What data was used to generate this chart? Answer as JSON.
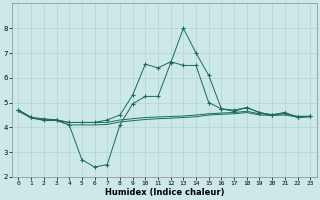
{
  "xlabel": "Humidex (Indice chaleur)",
  "xlim": [
    -0.5,
    23.5
  ],
  "ylim": [
    2,
    9
  ],
  "yticks": [
    2,
    3,
    4,
    5,
    6,
    7,
    8
  ],
  "xticks": [
    0,
    1,
    2,
    3,
    4,
    5,
    6,
    7,
    8,
    9,
    10,
    11,
    12,
    13,
    14,
    15,
    16,
    17,
    18,
    19,
    20,
    21,
    22,
    23
  ],
  "bg_color": "#cce8e8",
  "grid_color": "#b8d8d0",
  "line_color": "#1a6b5a",
  "lines": [
    {
      "x": [
        0,
        1,
        2,
        3,
        4,
        5,
        6,
        7,
        8,
        9,
        10,
        11,
        12,
        13,
        14,
        15,
        16,
        17,
        18,
        19,
        20,
        21,
        22,
        23
      ],
      "y": [
        4.7,
        4.4,
        4.3,
        4.3,
        4.2,
        4.2,
        4.2,
        4.2,
        4.3,
        4.35,
        4.4,
        4.42,
        4.44,
        4.46,
        4.5,
        4.55,
        4.58,
        4.6,
        4.65,
        4.55,
        4.52,
        4.55,
        4.45,
        4.45
      ],
      "marker": null
    },
    {
      "x": [
        0,
        1,
        2,
        3,
        4,
        5,
        6,
        7,
        8,
        9,
        10,
        11,
        12,
        13,
        14,
        15,
        16,
        17,
        18,
        19,
        20,
        21,
        22,
        23
      ],
      "y": [
        4.7,
        4.4,
        4.3,
        4.3,
        4.1,
        2.7,
        2.4,
        2.5,
        4.1,
        4.95,
        5.25,
        5.25,
        6.6,
        8.0,
        7.0,
        6.1,
        4.75,
        4.7,
        4.8,
        4.6,
        4.5,
        4.6,
        4.4,
        4.45
      ],
      "marker": "+"
    },
    {
      "x": [
        0,
        1,
        2,
        3,
        4,
        5,
        6,
        7,
        8,
        9,
        10,
        11,
        12,
        13,
        14,
        15,
        16,
        17,
        18,
        19,
        20,
        21,
        22,
        23
      ],
      "y": [
        4.7,
        4.4,
        4.35,
        4.3,
        4.2,
        4.2,
        4.2,
        4.3,
        4.5,
        5.3,
        6.55,
        6.4,
        6.65,
        6.5,
        6.5,
        5.0,
        4.75,
        4.65,
        4.8,
        4.6,
        4.5,
        4.6,
        4.4,
        4.45
      ],
      "marker": "+"
    },
    {
      "x": [
        0,
        1,
        2,
        3,
        4,
        5,
        6,
        7,
        8,
        9,
        10,
        11,
        12,
        13,
        14,
        15,
        16,
        17,
        18,
        19,
        20,
        21,
        22,
        23
      ],
      "y": [
        4.65,
        4.38,
        4.28,
        4.28,
        4.1,
        4.1,
        4.1,
        4.12,
        4.22,
        4.27,
        4.32,
        4.35,
        4.37,
        4.4,
        4.43,
        4.5,
        4.53,
        4.55,
        4.6,
        4.5,
        4.48,
        4.5,
        4.42,
        4.42
      ],
      "marker": null
    }
  ]
}
